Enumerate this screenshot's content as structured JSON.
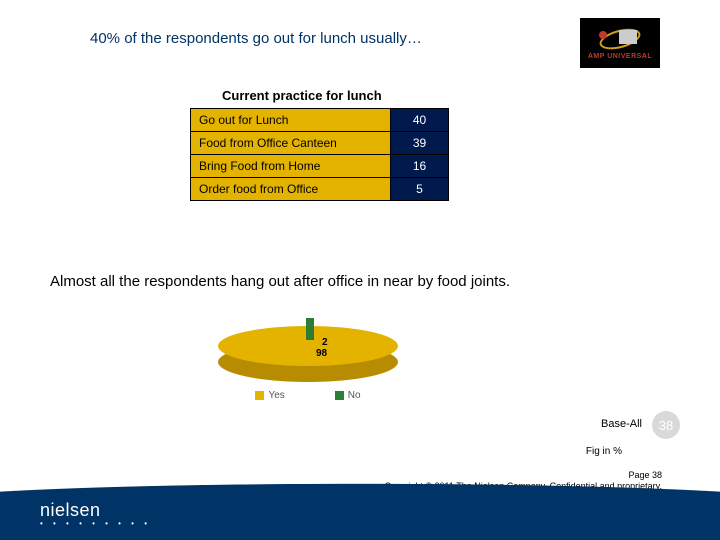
{
  "title": "40% of the respondents go out for lunch usually…",
  "logo": {
    "brand": "AMP UNIVERSAL"
  },
  "table": {
    "title": "Current practice for lunch",
    "header_bg": "#e4b300",
    "value_bg": "#001a4d",
    "value_color": "#ffffff",
    "border_color": "#000000",
    "label_fontsize": 12,
    "rows": [
      {
        "label": "Go out for Lunch",
        "value": "40"
      },
      {
        "label": "Food from Office Canteen",
        "value": "39"
      },
      {
        "label": "Bring Food from Home",
        "value": "16"
      },
      {
        "label": "Order food from Office",
        "value": "5"
      }
    ]
  },
  "subtitle": "Almost all the respondents hang out after office in near by food joints.",
  "pie": {
    "type": "pie",
    "is_3d": true,
    "slices": [
      {
        "label": "Yes",
        "value": 98,
        "color": "#e4b300",
        "side_color": "#b88c00"
      },
      {
        "label": "No",
        "value": 2,
        "color": "#2e7d32"
      }
    ],
    "data_label_fontsize": 10,
    "data_label_color": "#000000",
    "legend_position": "bottom",
    "legend_fontsize": 10,
    "legend": {
      "yes": "Yes",
      "no": "No"
    },
    "labels": {
      "no": "2",
      "yes": "98"
    }
  },
  "base_all": "Base-All",
  "page_bubble": "38",
  "fig_pct": "Fig in %",
  "copyright": {
    "line1": "Page 38",
    "line2": "Copyright © 2011 The Nielsen Company. Confidential and proprietary."
  },
  "footer": {
    "band_color": "#003366",
    "brand": "nielsen",
    "dots": "• • • • • • • • •"
  }
}
